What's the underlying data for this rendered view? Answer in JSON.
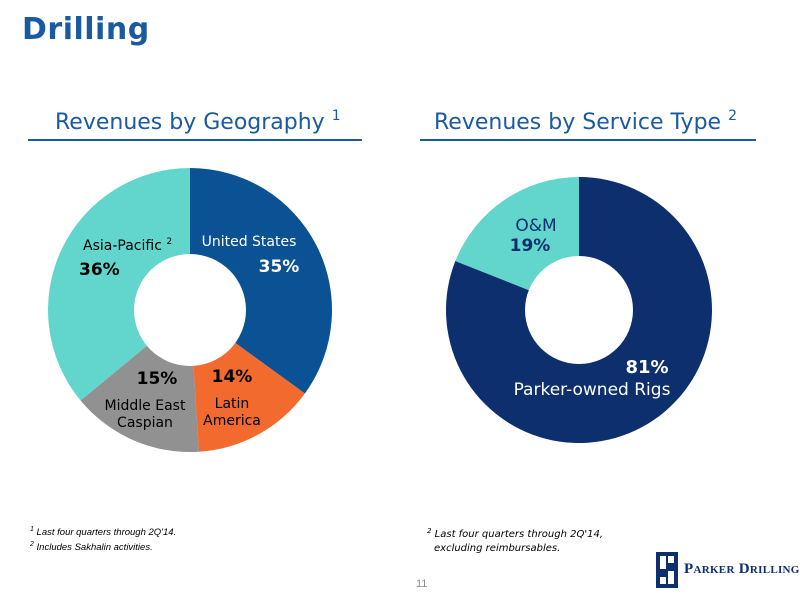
{
  "page": {
    "title": "Drilling",
    "page_number": "11"
  },
  "geography": {
    "title": "Revenues by Geography",
    "title_sup": "1",
    "footnote_1_num": "1",
    "footnote_1": "Last four quarters through 2Q'14.",
    "footnote_2_num": "2",
    "footnote_2": "Includes Sakhalin activities."
  },
  "service": {
    "title": "Revenues by Service Type",
    "title_sup": "2",
    "footnote_num": "2",
    "footnote_line1": "Last four quarters through 2Q'14,",
    "footnote_line2": "excluding reimbursables."
  },
  "logo": {
    "text": "Parker Drilling",
    "primary_color": "#0d2f6e"
  },
  "chart_data": [
    {
      "type": "pie",
      "title": "Revenues by Geography",
      "donut": true,
      "start": "top, clockwise",
      "slices": [
        {
          "label": "United States",
          "value": 35,
          "percent_label": "35%",
          "color": "#0a5294"
        },
        {
          "label": "Latin America",
          "value": 14,
          "percent_label": "14%",
          "color": "#f26a2d"
        },
        {
          "label": "Middle East Caspian",
          "value": 15,
          "percent_label": "15%",
          "color": "#919191"
        },
        {
          "label": "Asia-Pacific",
          "label_sup": "2",
          "value": 36,
          "percent_label": "36%",
          "color": "#62d6cd"
        }
      ]
    },
    {
      "type": "pie",
      "title": "Revenues by Service Type",
      "donut": true,
      "start": "top, clockwise",
      "slices": [
        {
          "label": "Parker-owned Rigs",
          "value": 81,
          "percent_label": "81%",
          "color": "#0d2f6e"
        },
        {
          "label": "O&M",
          "value": 19,
          "percent_label": "19%",
          "color": "#62d6cd"
        }
      ]
    }
  ]
}
